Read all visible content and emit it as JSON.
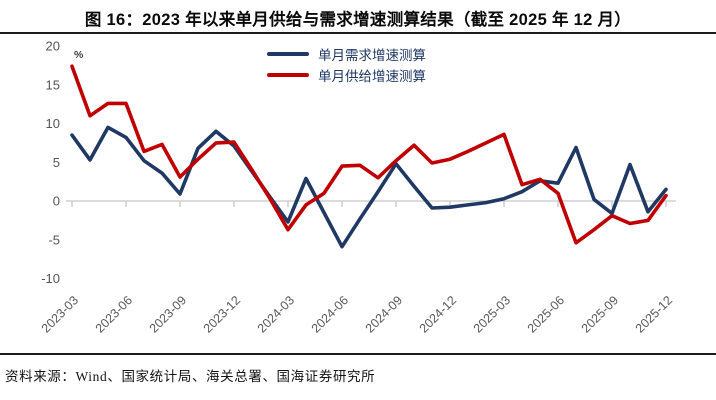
{
  "title": "图 16：2023 年以来单月供给与需求增速测算结果（截至 2025 年 12 月）",
  "source": "资料来源：Wind、国家统计局、海关总署、国海证券研究所",
  "colors": {
    "demand": "#1F3864",
    "supply": "#C00000",
    "axis_line": "#C6C6C6",
    "tick_label": "#595959",
    "y_label": "#555555",
    "divider": "#1C1C1C",
    "legend_text": "#1F3864"
  },
  "chart_data": {
    "type": "line",
    "title": "图 16：2023 年以来单月供给与需求增速测算结果（截至 2025 年 12 月）",
    "unit_label": "%",
    "xlabel": "",
    "ylabel": "%",
    "ylim": [
      -10,
      20
    ],
    "yticks": [
      20,
      15,
      10,
      5,
      0,
      -5,
      -10
    ],
    "grid": false,
    "legend_position": "top-center",
    "x": [
      "2023-03",
      "2023-04",
      "2023-05",
      "2023-06",
      "2023-07",
      "2023-08",
      "2023-09",
      "2023-10",
      "2023-11",
      "2023-12",
      "2024-01",
      "2024-02",
      "2024-03",
      "2024-04",
      "2024-05",
      "2024-06",
      "2024-07",
      "2024-08",
      "2024-09",
      "2024-10",
      "2024-11",
      "2024-12",
      "2025-01",
      "2025-02",
      "2025-03",
      "2025-04",
      "2025-05",
      "2025-06",
      "2025-07",
      "2025-08",
      "2025-09",
      "2025-10",
      "2025-11",
      "2025-12"
    ],
    "x_tick_labels": [
      "2023-03",
      "2023-06",
      "2023-09",
      "2023-12",
      "2024-03",
      "2024-06",
      "2024-09",
      "2024-12",
      "2025-03",
      "2025-06",
      "2025-09",
      "2025-12"
    ],
    "series": [
      {
        "key": "demand",
        "name": "单月需求增速测算",
        "color": "#1F3864",
        "values": [
          8.5,
          5.3,
          9.5,
          8.2,
          5.2,
          3.6,
          0.9,
          6.8,
          9.0,
          7.1,
          3.8,
          0.5,
          -2.7,
          2.9,
          -1.5,
          -5.9,
          -2.3,
          1.2,
          4.8,
          1.9,
          -0.9,
          -0.8,
          -0.5,
          -0.2,
          0.3,
          1.2,
          2.6,
          2.3,
          6.9,
          0.2,
          -1.6,
          4.7,
          -1.4,
          1.5
        ]
      },
      {
        "key": "supply",
        "name": "单月供给增速测算",
        "color": "#C00000",
        "values": [
          17.4,
          11.0,
          12.6,
          12.6,
          6.4,
          7.3,
          3.1,
          5.4,
          7.5,
          7.6,
          4.0,
          0.3,
          -3.7,
          -0.5,
          1.0,
          4.5,
          4.6,
          3.0,
          5.2,
          7.2,
          4.9,
          5.4,
          6.4,
          7.5,
          8.6,
          2.1,
          2.8,
          1.0,
          -5.4,
          -3.7,
          -1.9,
          -2.9,
          -2.5,
          0.7
        ]
      }
    ]
  }
}
